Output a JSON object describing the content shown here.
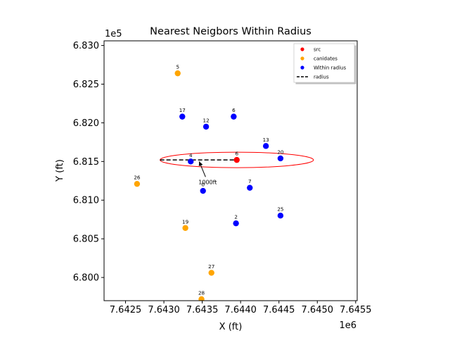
{
  "chart_data": {
    "type": "scatter",
    "title": "Nearest Neigbors Within Radius",
    "xlabel": "X (ft)",
    "ylabel": "Y (ft)",
    "x_offset_label": "1e6",
    "y_offset_label": "1e5",
    "xlim": [
      7.64222,
      7.64552
    ],
    "ylim": [
      6.797,
      6.8306
    ],
    "x_ticks": [
      7.6425,
      7.643,
      7.6435,
      7.644,
      7.6445,
      7.645,
      7.6455
    ],
    "x_tick_labels": [
      "7.6425",
      "7.6430",
      "7.6435",
      "7.6440",
      "7.6445",
      "7.6450",
      "7.6455"
    ],
    "y_ticks": [
      6.8,
      6.805,
      6.81,
      6.815,
      6.82,
      6.825,
      6.83
    ],
    "y_tick_labels": [
      "6.800",
      "6.805",
      "6.810",
      "6.815",
      "6.820",
      "6.825",
      "6.830"
    ],
    "grid": false,
    "legend_position": "top-right",
    "legend": [
      {
        "label": "src",
        "kind": "dot",
        "color": "#ff0000"
      },
      {
        "label": "canidates",
        "kind": "dot",
        "color": "#ffa500"
      },
      {
        "label": "Within radius",
        "kind": "dot",
        "color": "#0000ff"
      },
      {
        "label": "radius",
        "kind": "dash",
        "color": "#000000"
      }
    ],
    "series": [
      {
        "name": "src",
        "color": "#ff0000",
        "points": [
          {
            "label": "6",
            "x": 7.64395,
            "y": 6.8152
          }
        ]
      },
      {
        "name": "canidates",
        "color": "#ffa500",
        "points": [
          {
            "label": "5",
            "x": 7.64318,
            "y": 6.8264
          },
          {
            "label": "26",
            "x": 7.64265,
            "y": 6.8121
          },
          {
            "label": "19",
            "x": 7.64328,
            "y": 6.8064
          },
          {
            "label": "27",
            "x": 7.64362,
            "y": 6.8006
          },
          {
            "label": "28",
            "x": 7.64349,
            "y": 6.7972
          }
        ]
      },
      {
        "name": "Within radius",
        "color": "#0000ff",
        "points": [
          {
            "label": "17",
            "x": 7.64324,
            "y": 6.8208
          },
          {
            "label": "12",
            "x": 7.64355,
            "y": 6.8195
          },
          {
            "label": "6",
            "x": 7.64391,
            "y": 6.8208
          },
          {
            "label": "13",
            "x": 7.64433,
            "y": 6.817
          },
          {
            "label": "20",
            "x": 7.64452,
            "y": 6.8154
          },
          {
            "label": "4",
            "x": 7.64335,
            "y": 6.815
          },
          {
            "label": "0",
            "x": 7.64351,
            "y": 6.8112
          },
          {
            "label": "7",
            "x": 7.64412,
            "y": 6.8116
          },
          {
            "label": "2",
            "x": 7.64394,
            "y": 6.807
          },
          {
            "label": "25",
            "x": 7.64452,
            "y": 6.808
          }
        ]
      }
    ],
    "circle": {
      "center_x": 7.64395,
      "center_y": 6.8152,
      "radius": 0.001,
      "color": "#ff0000"
    },
    "radius_line": {
      "x1": 7.64295,
      "x2": 7.64395,
      "y": 6.8152,
      "color": "#000000"
    },
    "annotation": {
      "text": "1000ft",
      "arrow_to_x": 7.64346,
      "arrow_to_y": 6.815,
      "text_x": 7.64358,
      "text_y": 6.812
    }
  }
}
